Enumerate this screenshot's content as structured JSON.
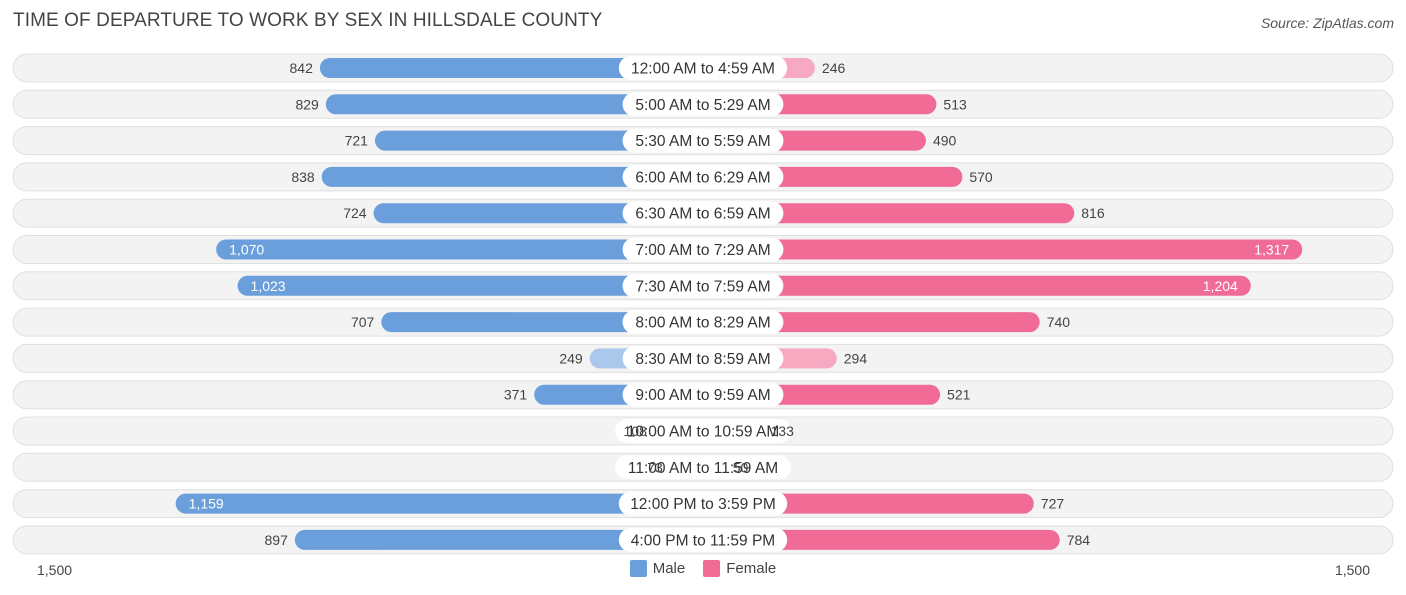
{
  "title": "TIME OF DEPARTURE TO WORK BY SEX IN HILLSDALE COUNTY",
  "source": "Source: ZipAtlas.com",
  "axis": {
    "left_label": "1,500",
    "right_label": "1,500"
  },
  "legend": {
    "male_label": "Male",
    "female_label": "Female"
  },
  "colors": {
    "male_dark": "#6a9fdc",
    "male_light": "#a9c8ec",
    "female_dark": "#f06c97",
    "female_light": "#f7a9c2",
    "row_bg": "#f3f3f3",
    "row_border": "#e0e0e0"
  },
  "chart_data": {
    "type": "bar",
    "orientation": "horizontal-diverging",
    "title": "TIME OF DEPARTURE TO WORK BY SEX IN HILLSDALE COUNTY",
    "xlim": [
      -1500,
      1500
    ],
    "categories": [
      "12:00 AM to 4:59 AM",
      "5:00 AM to 5:29 AM",
      "5:30 AM to 5:59 AM",
      "6:00 AM to 6:29 AM",
      "6:30 AM to 6:59 AM",
      "7:00 AM to 7:29 AM",
      "7:30 AM to 7:59 AM",
      "8:00 AM to 8:29 AM",
      "8:30 AM to 8:59 AM",
      "9:00 AM to 9:59 AM",
      "10:00 AM to 10:59 AM",
      "11:00 AM to 11:59 AM",
      "12:00 PM to 3:59 PM",
      "4:00 PM to 11:59 PM"
    ],
    "series": [
      {
        "name": "Male",
        "values": [
          842,
          829,
          721,
          838,
          724,
          1070,
          1023,
          707,
          249,
          371,
          108,
          73,
          1159,
          897
        ],
        "labels": [
          "842",
          "829",
          "721",
          "838",
          "724",
          "1,070",
          "1,023",
          "707",
          "249",
          "371",
          "108",
          "73",
          "1,159",
          "897"
        ]
      },
      {
        "name": "Female",
        "values": [
          246,
          513,
          490,
          570,
          816,
          1317,
          1204,
          740,
          294,
          521,
          133,
          50,
          727,
          784
        ],
        "labels": [
          "246",
          "513",
          "490",
          "570",
          "816",
          "1,317",
          "1,204",
          "740",
          "294",
          "521",
          "133",
          "50",
          "727",
          "784"
        ]
      }
    ]
  }
}
